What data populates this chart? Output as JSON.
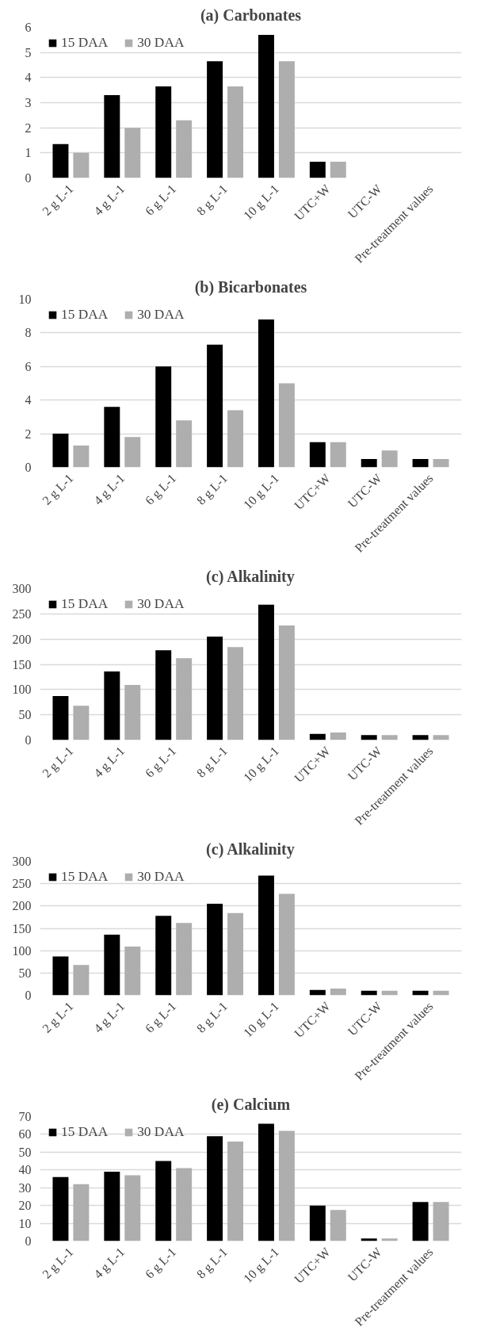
{
  "chart_data": [
    {
      "type": "bar",
      "title": "(a) Carbonates",
      "categories": [
        "2 g L-1",
        "4 g L-1",
        "6 g L-1",
        "8 g L-1",
        "10 g L-1",
        "UTC+W",
        "UTC-W",
        "Pre-treatment values"
      ],
      "ylim": [
        0,
        6
      ],
      "yticks": [
        0,
        1,
        2,
        3,
        4,
        5,
        6
      ],
      "grid": "y",
      "legend": "top left",
      "series": [
        {
          "name": "15 DAA",
          "color": "#000000",
          "values": [
            1.35,
            3.3,
            3.65,
            4.65,
            5.7,
            0.65,
            0,
            0
          ]
        },
        {
          "name": "30 DAA",
          "color": "#aeaeae",
          "values": [
            1.0,
            2.0,
            2.3,
            3.65,
            4.65,
            0.65,
            0,
            0
          ]
        }
      ]
    },
    {
      "type": "bar",
      "title": "(b) Bicarbonates",
      "categories": [
        "2 g L-1",
        "4 g L-1",
        "6 g L-1",
        "8 g L-1",
        "10 g L-1",
        "UTC+W",
        "UTC-W",
        "Pre-treatment values"
      ],
      "ylim": [
        0,
        10
      ],
      "yticks": [
        0,
        2,
        4,
        6,
        8,
        10
      ],
      "grid": "y",
      "legend": "top left",
      "series": [
        {
          "name": "15 DAA",
          "color": "#000000",
          "values": [
            2.0,
            3.6,
            6.0,
            7.3,
            8.8,
            1.5,
            0.5,
            0.5
          ]
        },
        {
          "name": "30 DAA",
          "color": "#aeaeae",
          "values": [
            1.3,
            1.8,
            2.8,
            3.4,
            5.0,
            1.5,
            1.0,
            0.5
          ]
        }
      ]
    },
    {
      "type": "bar",
      "title": "(c) Alkalinity",
      "categories": [
        "2 g L-1",
        "4 g L-1",
        "6 g L-1",
        "8 g L-1",
        "10 g L-1",
        "UTC+W",
        "UTC-W",
        "Pre-treatment values"
      ],
      "ylim": [
        0,
        300
      ],
      "yticks": [
        0,
        50,
        100,
        150,
        200,
        250,
        300
      ],
      "grid": "y",
      "legend": "top left",
      "series": [
        {
          "name": "15 DAA",
          "color": "#000000",
          "values": [
            87,
            136,
            178,
            205,
            268,
            12,
            10,
            10
          ]
        },
        {
          "name": "30 DAA",
          "color": "#aeaeae",
          "values": [
            68,
            109,
            162,
            184,
            227,
            15,
            10,
            10
          ]
        }
      ]
    },
    {
      "type": "bar",
      "title": "(c) Alkalinity",
      "categories": [
        "2 g L-1",
        "4 g L-1",
        "6 g L-1",
        "8 g L-1",
        "10 g L-1",
        "UTC+W",
        "UTC-W",
        "Pre-treatment values"
      ],
      "ylim": [
        0,
        300
      ],
      "yticks": [
        0,
        50,
        100,
        150,
        200,
        250,
        300
      ],
      "grid": "y",
      "legend": "top left",
      "series": [
        {
          "name": "15 DAA",
          "color": "#000000",
          "values": [
            87,
            136,
            178,
            205,
            268,
            12,
            10,
            10
          ]
        },
        {
          "name": "30 DAA",
          "color": "#aeaeae",
          "values": [
            68,
            109,
            162,
            184,
            227,
            15,
            10,
            10
          ]
        }
      ]
    },
    {
      "type": "bar",
      "title": "(e) Calcium",
      "categories": [
        "2 g L-1",
        "4 g L-1",
        "6 g L-1",
        "8 g L-1",
        "10 g L-1",
        "UTC+W",
        "UTC-W",
        "Pre-treatment values"
      ],
      "ylim": [
        0,
        70
      ],
      "yticks": [
        0,
        10,
        20,
        30,
        40,
        50,
        60,
        70
      ],
      "grid": "y",
      "legend": "top left",
      "series": [
        {
          "name": "15 DAA",
          "color": "#000000",
          "values": [
            36,
            39,
            45,
            59,
            66,
            20,
            1.5,
            22
          ]
        },
        {
          "name": "30 DAA",
          "color": "#aeaeae",
          "values": [
            32,
            37,
            41,
            56,
            62,
            17.5,
            1.5,
            22
          ]
        }
      ]
    }
  ]
}
